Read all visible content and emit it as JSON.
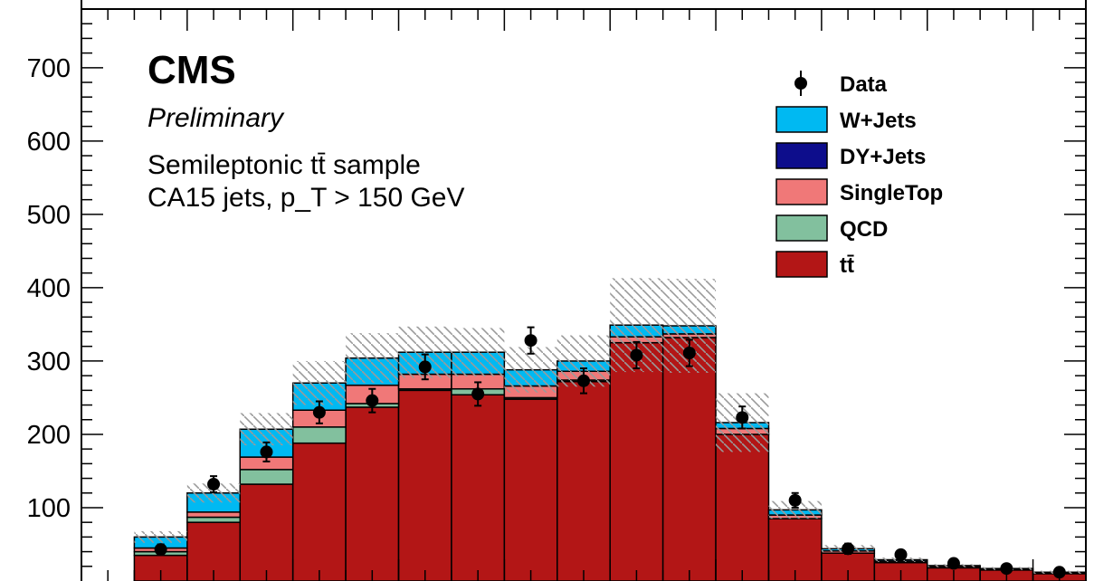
{
  "chart_data": {
    "type": "bar",
    "stacked": true,
    "title": "CMS",
    "subtitle": "Preliminary",
    "annotations": [
      "Semileptonic tt̄ sample",
      "CA15 jets, p_T > 150 GeV"
    ],
    "xlabel": "",
    "ylabel": "",
    "ylim": [
      0,
      780
    ],
    "grid": false,
    "legend_position": "top-right",
    "bin_count": 18,
    "bin_values": [
      1,
      2,
      3,
      4,
      5,
      6,
      7,
      8,
      9,
      10,
      11,
      12,
      13,
      14,
      15,
      16,
      17,
      18
    ],
    "yticks": [
      100,
      200,
      300,
      400,
      500,
      600,
      700
    ],
    "series": [
      {
        "name": "tt̄",
        "color": "#b31616",
        "values": [
          35,
          80,
          132,
          188,
          237,
          260,
          254,
          248,
          272,
          325,
          332,
          200,
          85,
          38,
          25,
          18,
          15,
          10
        ]
      },
      {
        "name": "QCD",
        "color": "#82c09e",
        "values": [
          5,
          7,
          20,
          22,
          5,
          2,
          8,
          2,
          2,
          0,
          0,
          0,
          0,
          0,
          0,
          0,
          0,
          0
        ]
      },
      {
        "name": "SingleTop",
        "color": "#f07878",
        "values": [
          5,
          7,
          17,
          23,
          25,
          20,
          20,
          16,
          12,
          8,
          5,
          8,
          5,
          3,
          2,
          2,
          1,
          1
        ]
      },
      {
        "name": "DY+Jets",
        "color": "#0d0d8c",
        "values": [
          0,
          0,
          0,
          0,
          0,
          0,
          0,
          0,
          0,
          0,
          0,
          0,
          0,
          0,
          0,
          0,
          0,
          0
        ]
      },
      {
        "name": "W+Jets",
        "color": "#00b9f2",
        "values": [
          15,
          26,
          38,
          37,
          37,
          30,
          30,
          22,
          14,
          16,
          11,
          8,
          7,
          3,
          2,
          1,
          1,
          1
        ]
      }
    ],
    "data": {
      "name": "Data",
      "values": [
        43,
        132,
        176,
        230,
        246,
        292,
        255,
        328,
        273,
        308,
        311,
        223,
        110,
        44,
        36,
        24,
        17,
        12
      ],
      "errors": [
        7,
        11,
        13,
        15,
        16,
        17,
        16,
        18,
        17,
        18,
        18,
        15,
        10,
        7,
        6,
        5,
        4,
        3
      ]
    },
    "mc_uncertainty": [
      8,
      13,
      22,
      30,
      34,
      35,
      33,
      31,
      35,
      64,
      64,
      40,
      12,
      5,
      3,
      2,
      2,
      2
    ],
    "legend": [
      "Data",
      "W+Jets",
      "DY+Jets",
      "SingleTop",
      "QCD",
      "tt̄"
    ]
  }
}
